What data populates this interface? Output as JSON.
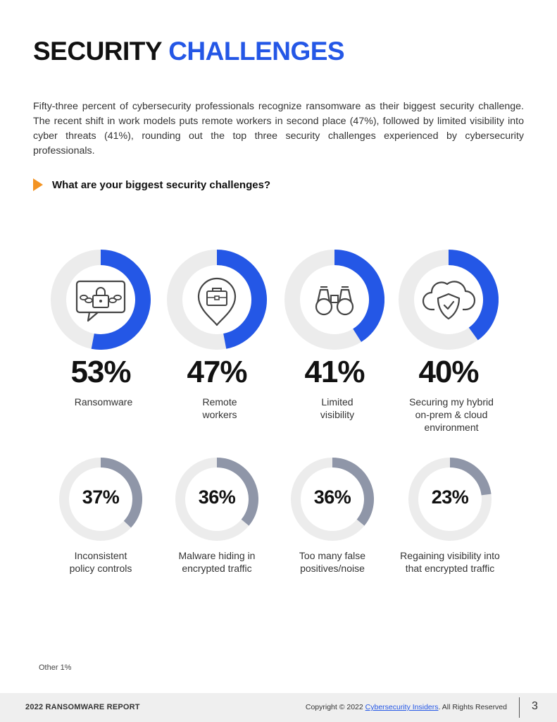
{
  "header": {
    "title_part1": "SECURITY",
    "title_part2": "CHALLENGES"
  },
  "intro": "Fifty-three percent of cybersecurity professionals recognize ransomware as their biggest security challenge. The recent shift in work models puts remote workers in second place (47%), followed by limited visibility into cyber threats (41%), rounding out the top three security challenges experienced by cybersecurity professionals.",
  "question": "What are your biggest security challenges?",
  "colors": {
    "accent": "#2457e6",
    "secondary": "#8f96a8",
    "track": "#ececec",
    "arrow": "#f39322"
  },
  "chart_data": {
    "type": "donut",
    "title": "What are your biggest security challenges?",
    "unit": "%",
    "top_row": [
      {
        "label_lines": [
          "Ransomware"
        ],
        "value": 53,
        "display": "53%",
        "icon": "padlock-chain-icon"
      },
      {
        "label_lines": [
          "Remote",
          "workers"
        ],
        "value": 47,
        "display": "47%",
        "icon": "briefcase-location-icon"
      },
      {
        "label_lines": [
          "Limited",
          "visibility"
        ],
        "value": 41,
        "display": "41%",
        "icon": "binoculars-icon"
      },
      {
        "label_lines": [
          "Securing my hybrid",
          "on-prem & cloud",
          "environment"
        ],
        "value": 40,
        "display": "40%",
        "icon": "cloud-shield-icon"
      }
    ],
    "bottom_row": [
      {
        "label_lines": [
          "Inconsistent",
          "policy controls"
        ],
        "value": 37,
        "display": "37%"
      },
      {
        "label_lines": [
          "Malware hiding in",
          "encrypted traffic"
        ],
        "value": 36,
        "display": "36%"
      },
      {
        "label_lines": [
          "Too many false",
          "positives/noise"
        ],
        "value": 36,
        "display": "36%"
      },
      {
        "label_lines": [
          "Regaining visibility into",
          "that encrypted traffic"
        ],
        "value": 23,
        "display": "23%"
      }
    ],
    "other_note": "Other 1%"
  },
  "footer": {
    "report_name": "2022 RANSOMWARE REPORT",
    "copyright_prefix": "Copyright © 2022 ",
    "copyright_link": "Cybersecurity Insiders",
    "copyright_suffix": ". All Rights Reserved",
    "page_number": "3"
  }
}
